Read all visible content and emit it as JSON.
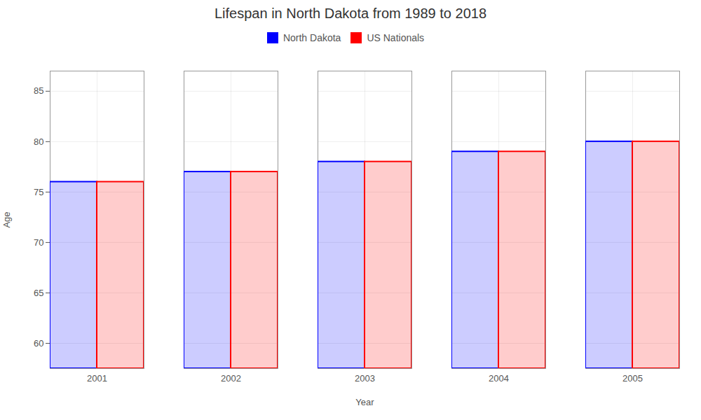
{
  "chart_data": {
    "type": "bar",
    "title": "Lifespan in North Dakota from 1989 to 2018",
    "xlabel": "Year",
    "ylabel": "Age",
    "categories": [
      "2001",
      "2002",
      "2003",
      "2004",
      "2005"
    ],
    "series": [
      {
        "name": "North Dakota",
        "color": "#0000ff",
        "values": [
          76,
          77,
          78,
          79,
          80
        ]
      },
      {
        "name": "US Nationals",
        "color": "#ff0000",
        "values": [
          76,
          77,
          78,
          79,
          80
        ]
      }
    ],
    "ylim": [
      57.5,
      87
    ],
    "yticks": [
      60,
      65,
      70,
      75,
      80,
      85
    ],
    "grid": true,
    "legend": "top"
  }
}
